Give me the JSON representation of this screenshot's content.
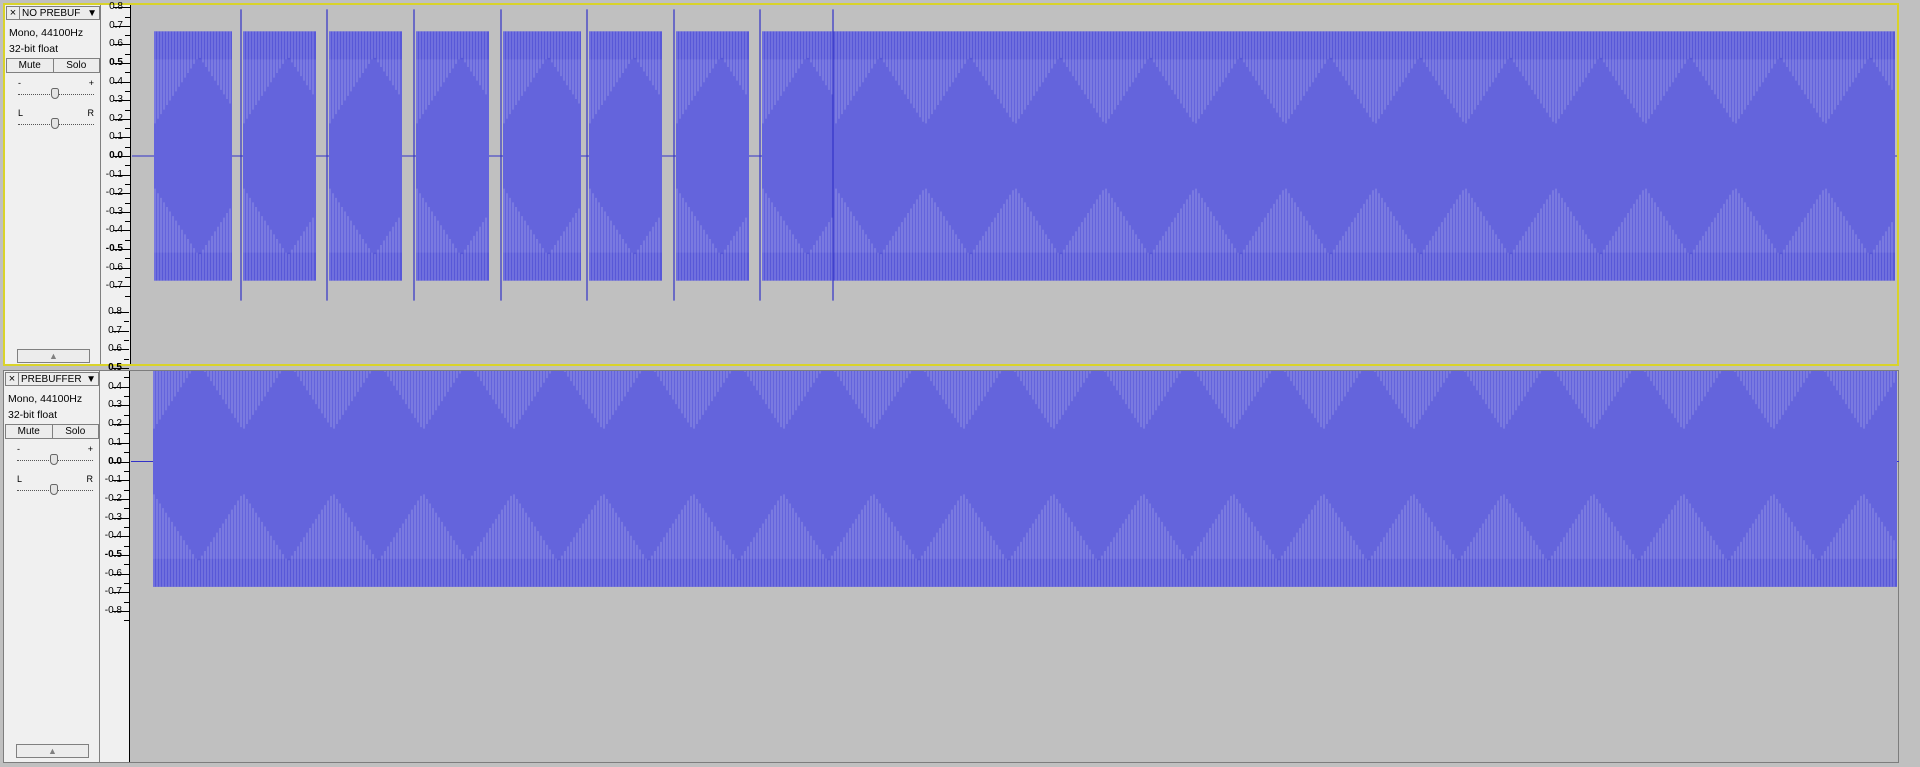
{
  "colors": {
    "background": "#c0c0c0",
    "waveform": "#6464dc",
    "waveform_dark": "#3232c8",
    "selected_border": "#d9d32a"
  },
  "tracks": [
    {
      "name": "NO PREBUF",
      "close_icon": "×",
      "menu_icon": "triangle-down",
      "format": "Mono, 44100Hz",
      "bit_depth": "32-bit float",
      "mute_label": "Mute",
      "solo_label": "Solo",
      "gain_labels": {
        "minus": "-",
        "plus": "+"
      },
      "pan_labels": {
        "left": "L",
        "right": "R"
      },
      "selected": true,
      "ruler": [
        {
          "v": "0.8",
          "b": false
        },
        {
          "v": "0.7",
          "b": false
        },
        {
          "v": "0.6",
          "b": false
        },
        {
          "v": "0.5",
          "b": true
        },
        {
          "v": "0.4",
          "b": false
        },
        {
          "v": "0.3",
          "b": false
        },
        {
          "v": "0.2",
          "b": false
        },
        {
          "v": "0.1",
          "b": false
        },
        {
          "v": "0.0",
          "b": true
        },
        {
          "v": "-0.1",
          "b": false
        },
        {
          "v": "-0.2",
          "b": false
        },
        {
          "v": "-0.3",
          "b": false
        },
        {
          "v": "-0.4",
          "b": false
        },
        {
          "v": "-0.5",
          "b": true
        },
        {
          "v": "-0.6",
          "b": false
        },
        {
          "v": "-0.7",
          "b": false
        }
      ],
      "amplitude": 0.67,
      "gapped": true
    },
    {
      "name": "PREBUFFER",
      "close_icon": "×",
      "menu_icon": "triangle-down",
      "format": "Mono, 44100Hz",
      "bit_depth": "32-bit float",
      "mute_label": "Mute",
      "solo_label": "Solo",
      "gain_labels": {
        "minus": "-",
        "plus": "+"
      },
      "pan_labels": {
        "left": "L",
        "right": "R"
      },
      "selected": false,
      "ruler": [
        {
          "v": "0.8",
          "b": false
        },
        {
          "v": "0.7",
          "b": false
        },
        {
          "v": "0.6",
          "b": false
        },
        {
          "v": "0.5",
          "b": true
        },
        {
          "v": "0.4",
          "b": false
        },
        {
          "v": "0.3",
          "b": false
        },
        {
          "v": "0.2",
          "b": false
        },
        {
          "v": "0.1",
          "b": false
        },
        {
          "v": "0.0",
          "b": true
        },
        {
          "v": "-0.1",
          "b": false
        },
        {
          "v": "-0.2",
          "b": false
        },
        {
          "v": "-0.3",
          "b": false
        },
        {
          "v": "-0.4",
          "b": false
        },
        {
          "v": "-0.5",
          "b": true
        },
        {
          "v": "-0.6",
          "b": false
        },
        {
          "v": "-0.7",
          "b": false
        },
        {
          "v": "-0.8",
          "b": false
        }
      ],
      "amplitude": 0.67,
      "gapped": false
    }
  ]
}
